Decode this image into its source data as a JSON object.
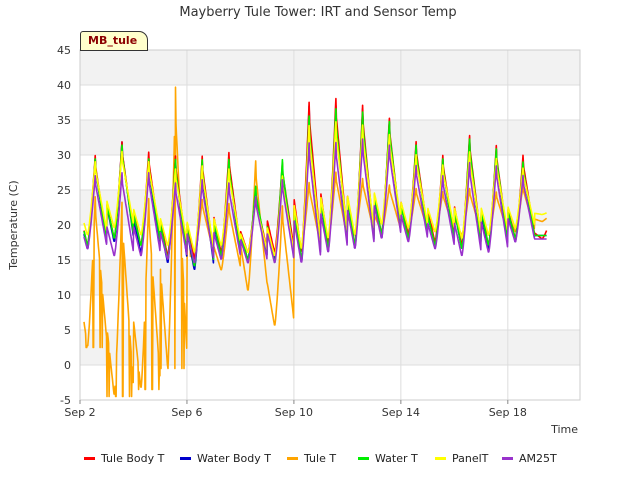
{
  "chart_data": {
    "type": "line",
    "title": "Mayberry Tule Tower: IRT and Sensor Temp",
    "xlabel": "Time",
    "ylabel": "Temperature (C)",
    "ylim": [
      -5,
      45
    ],
    "yticks": [
      -5,
      0,
      5,
      10,
      15,
      20,
      25,
      30,
      35,
      40,
      45
    ],
    "xrange_days": [
      2,
      20.7
    ],
    "xticks": [
      {
        "day": 2,
        "label": "Sep 2"
      },
      {
        "day": 6,
        "label": "Sep 6"
      },
      {
        "day": 10,
        "label": "Sep 10"
      },
      {
        "day": 14,
        "label": "Sep 14"
      },
      {
        "day": 18,
        "label": "Sep 18"
      }
    ],
    "station_label": "MB_tule",
    "days": [
      2,
      3,
      4,
      5,
      6,
      7,
      8,
      9,
      10,
      11,
      12,
      13,
      14,
      15,
      16,
      17,
      18,
      19
    ],
    "series": [
      {
        "name": "Tule Body T",
        "color": "#ff0000",
        "min": [
          17,
          18,
          17,
          15.5,
          15,
          16,
          16,
          16,
          16,
          17,
          17,
          18.5,
          18.5,
          17.5,
          17,
          17,
          18,
          18
        ],
        "max": [
          30.5,
          32.5,
          31,
          30.5,
          30.5,
          31,
          25,
          29.5,
          38.5,
          39,
          38,
          36,
          32.5,
          30.5,
          33.5,
          32,
          30.5,
          20.5
        ]
      },
      {
        "name": "Water Body T",
        "color": "#0000cc",
        "min": [
          16.5,
          17.5,
          16,
          14.5,
          13.5,
          15,
          15,
          15,
          14.5,
          16,
          16.5,
          18,
          18,
          17,
          16.5,
          16.5,
          17.5,
          18.5
        ],
        "max": [
          30,
          32.5,
          30,
          30,
          29.5,
          30,
          25.5,
          29,
          38,
          38,
          37.5,
          35.5,
          32,
          30,
          33,
          31.5,
          30,
          18.5
        ]
      },
      {
        "name": "Tule T",
        "color": "#ffa500",
        "min": [
          2.5,
          -4.5,
          -3.5,
          -0.5,
          15.5,
          13.5,
          10.5,
          5.5,
          16.5,
          17.5,
          18.5,
          19,
          19,
          19,
          18.5,
          18.5,
          19,
          20.5
        ],
        "max": [
          25,
          24.5,
          25,
          41.5,
          24,
          23.5,
          30,
          23.5,
          26.5,
          28,
          27,
          26,
          25.5,
          25,
          25.5,
          25,
          26,
          21.5
        ]
      },
      {
        "name": "Water T",
        "color": "#00ee00",
        "min": [
          17,
          18,
          17,
          15,
          14,
          15.5,
          15,
          14.5,
          15,
          16.5,
          17,
          18.5,
          18,
          17,
          16.5,
          17,
          18,
          18.5
        ],
        "max": [
          30,
          32,
          30,
          30,
          30,
          30,
          26,
          30,
          36.5,
          37.5,
          37,
          35.5,
          32,
          30,
          33,
          31.5,
          29.5,
          18.5
        ]
      },
      {
        "name": "PanelT",
        "color": "#ffff00",
        "min": [
          18.5,
          19.5,
          18.5,
          17,
          16,
          17,
          16,
          15.5,
          16.5,
          18,
          18.5,
          20,
          19.5,
          19,
          18,
          18.5,
          19.5,
          21.5
        ],
        "max": [
          29.5,
          31,
          29.5,
          28.5,
          29,
          28.5,
          24,
          27.5,
          35,
          35.5,
          35,
          33.5,
          30.5,
          29,
          31,
          30,
          28.5,
          22
        ]
      },
      {
        "name": "AM25T",
        "color": "#9932cc",
        "min": [
          16.5,
          15.5,
          15.5,
          15,
          14.5,
          15,
          14.5,
          14.5,
          14.5,
          16,
          16.5,
          18,
          17.5,
          16.5,
          15.5,
          16,
          17.5,
          18
        ],
        "max": [
          27.5,
          28,
          28,
          26.5,
          27,
          26.5,
          24.5,
          27,
          32.5,
          32.5,
          33,
          32,
          29,
          27.5,
          29.5,
          29,
          27.5,
          18
        ]
      }
    ]
  }
}
